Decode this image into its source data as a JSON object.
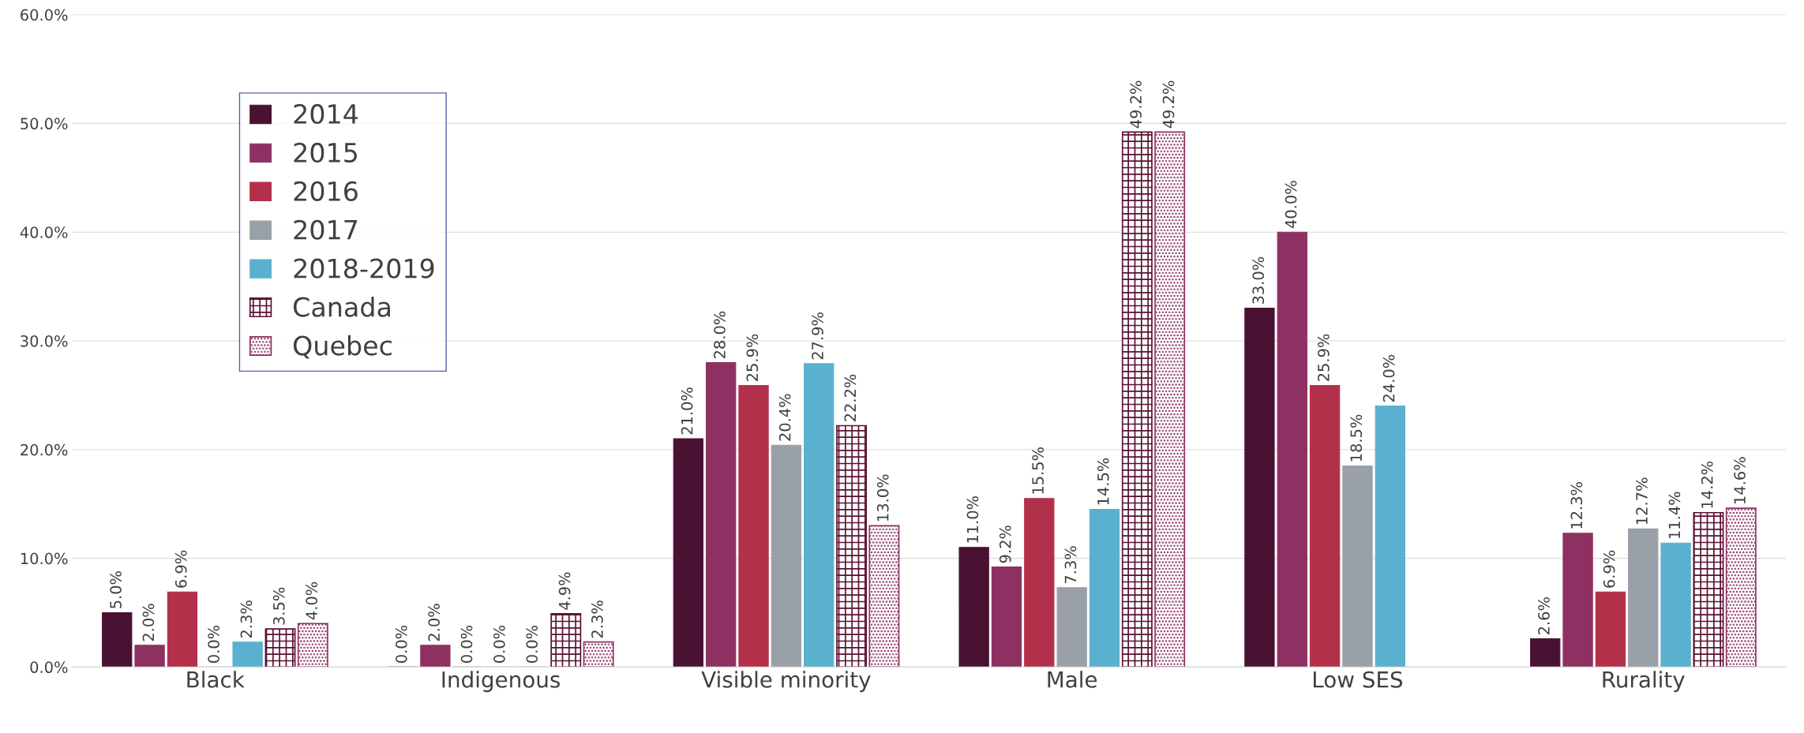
{
  "chart_data": {
    "type": "bar",
    "categories": [
      "Black",
      "Indigenous",
      "Visible minority",
      "Male",
      "Low SES",
      "Rurality"
    ],
    "series": [
      {
        "name": "2014",
        "color": "#4a1232",
        "values": [
          5.0,
          0.0,
          21.0,
          11.0,
          33.0,
          2.6
        ],
        "value_labels": [
          "5.0%",
          "0.0%",
          "21.0%",
          "11.0%",
          "33.0%",
          "2.6%"
        ]
      },
      {
        "name": "2015",
        "color": "#8e3162",
        "values": [
          2.0,
          2.0,
          28.0,
          9.2,
          40.0,
          12.3
        ],
        "value_labels": [
          "2.0%",
          "2.0%",
          "28.0%",
          "9.2%",
          "40.0%",
          "12.3%"
        ]
      },
      {
        "name": "2016",
        "color": "#b3304a",
        "values": [
          6.9,
          0.0,
          25.9,
          15.5,
          25.9,
          6.9
        ],
        "value_labels": [
          "6.9%",
          "0.0%",
          "25.9%",
          "15.5%",
          "25.9%",
          "6.9%"
        ]
      },
      {
        "name": "2017",
        "color": "#9aa0a8",
        "values": [
          0.0,
          0.0,
          20.4,
          7.3,
          18.5,
          12.7
        ],
        "value_labels": [
          "0.0%",
          "0.0%",
          "20.4%",
          "7.3%",
          "18.5%",
          "12.7%"
        ]
      },
      {
        "name": "2018-2019",
        "color": "#5ab1cf",
        "values": [
          2.3,
          0.0,
          27.9,
          14.5,
          24.0,
          11.4
        ],
        "value_labels": [
          "2.3%",
          "0.0%",
          "27.9%",
          "14.5%",
          "24.0%",
          "11.4%"
        ]
      },
      {
        "name": "Canada",
        "color": "#5a1030",
        "values": [
          3.5,
          4.9,
          22.2,
          49.2,
          null,
          14.2
        ],
        "value_labels": [
          "3.5%",
          "4.9%",
          "22.2%",
          "49.2%",
          null,
          "14.2%"
        ]
      },
      {
        "name": "Quebec",
        "color": "#8e3162",
        "values": [
          4.0,
          2.3,
          13.0,
          49.2,
          null,
          14.6
        ],
        "value_labels": [
          "4.0%",
          "2.3%",
          "13.0%",
          "49.2%",
          null,
          "14.6%"
        ]
      }
    ],
    "ylim": [
      0,
      60
    ],
    "yticks": [
      {
        "value": 0,
        "label": "0.0%"
      },
      {
        "value": 10,
        "label": "10.0%"
      },
      {
        "value": 20,
        "label": "20.0%"
      },
      {
        "value": 30,
        "label": "30.0%"
      },
      {
        "value": 40,
        "label": "40.0%"
      },
      {
        "value": 50,
        "label": "50.0%"
      },
      {
        "value": 60,
        "label": "60.0%"
      }
    ],
    "grid": "y",
    "legend": "top left"
  }
}
